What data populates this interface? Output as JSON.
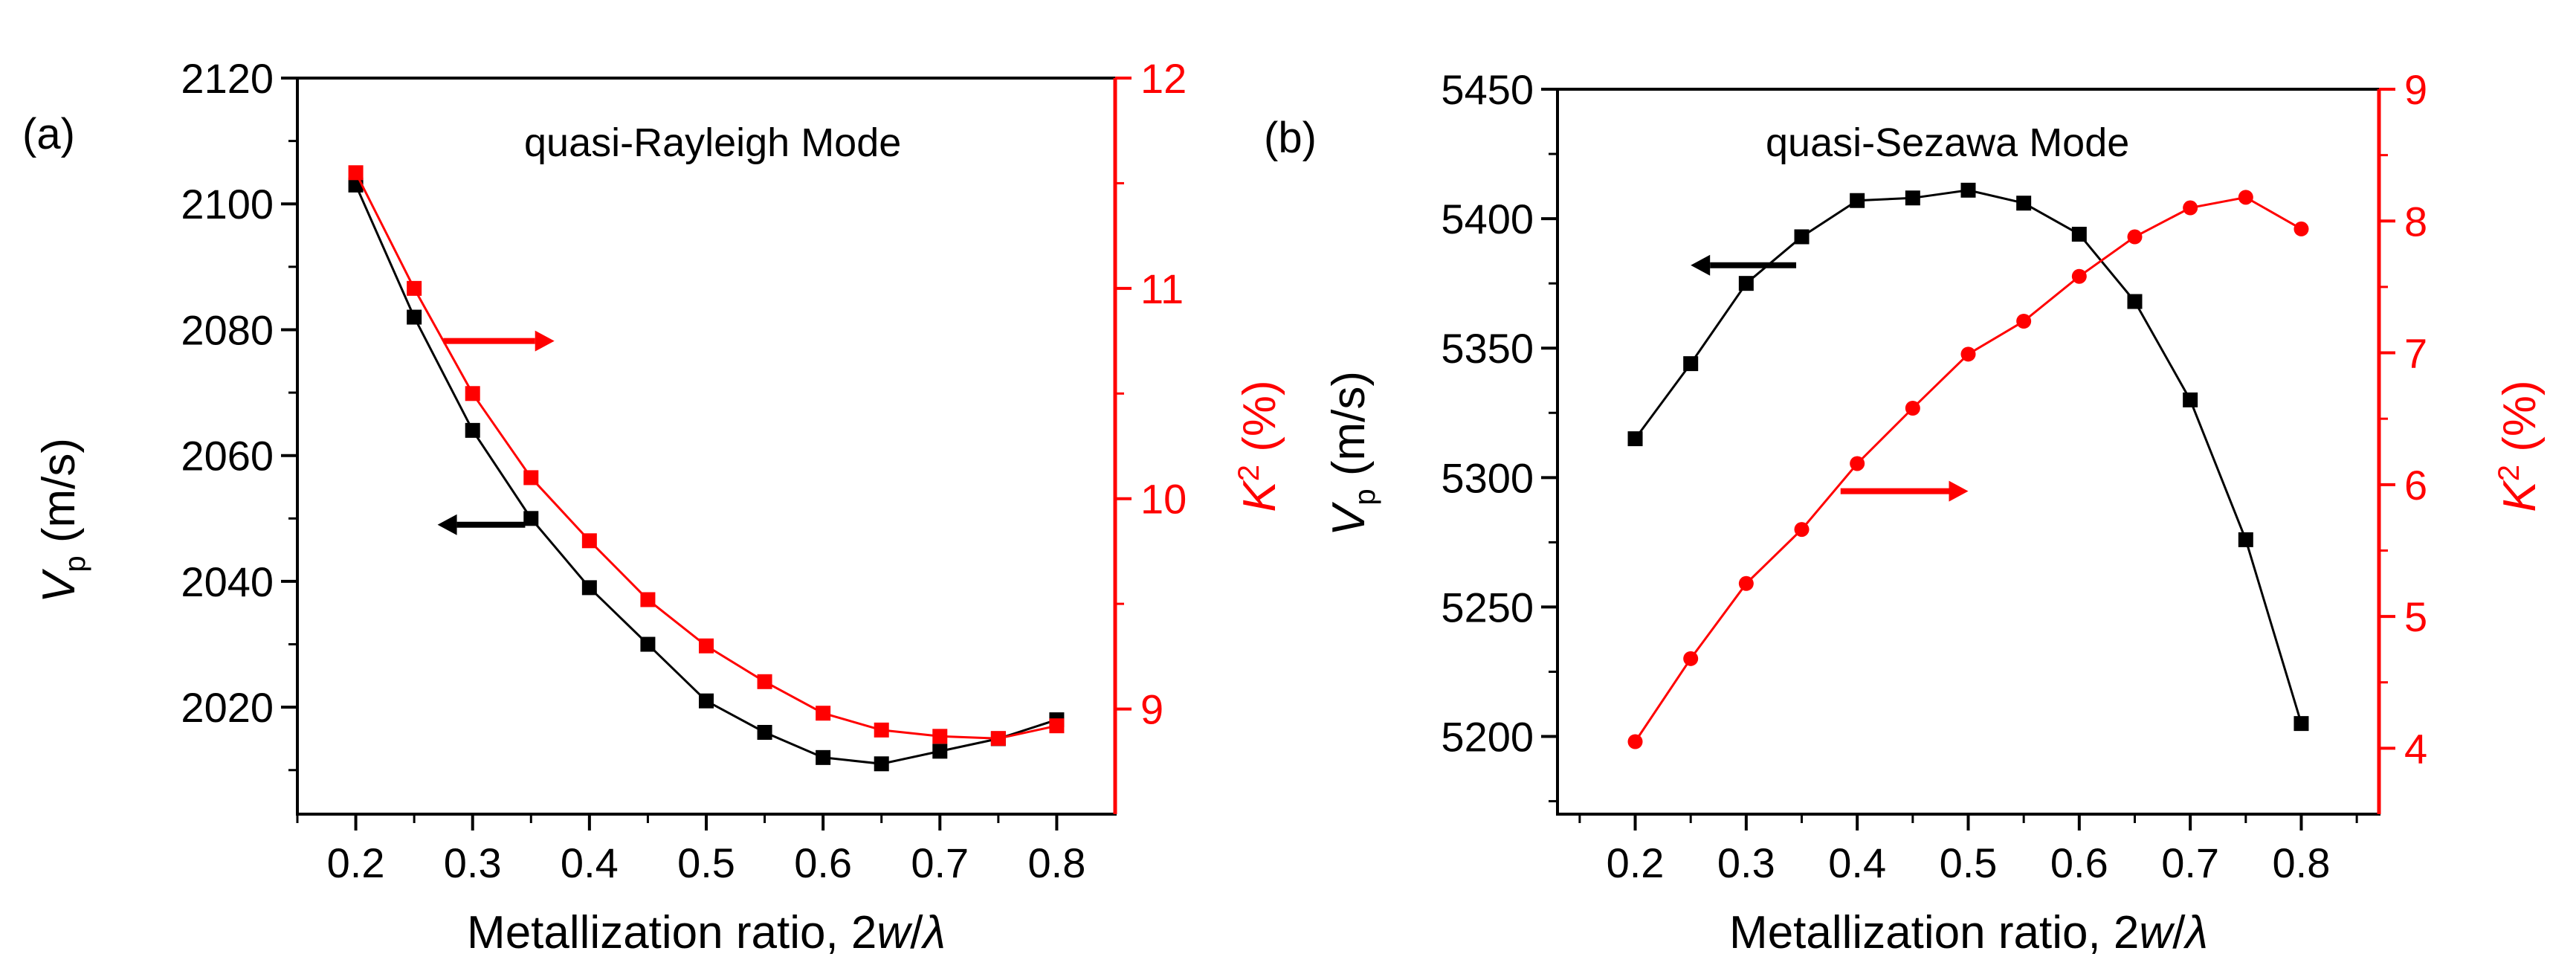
{
  "colors": {
    "left_axis": "#000000",
    "right_axis": "#ff0000",
    "black_series": "#000000",
    "red_series": "#ff0000"
  },
  "chart_data": [
    {
      "type": "line",
      "panel_label": "(a)",
      "annotation": "quasi-Rayleigh Mode",
      "xlabel": {
        "prefix": "Metallization ratio, 2",
        "var": "w",
        "slash": "/",
        "sym": "λ"
      },
      "ylabel_left": {
        "var": "V",
        "sub": "p",
        "unit": " (m/s)"
      },
      "ylabel_right": {
        "var": "K",
        "sup": "2",
        "unit": " (%)"
      },
      "xlim": [
        0.15,
        0.85
      ],
      "x_ticks": [
        "0.2",
        "0.3",
        "0.4",
        "0.5",
        "0.6",
        "0.7",
        "0.8"
      ],
      "ylim_left": [
        2003,
        2120
      ],
      "y_ticks_left": [
        "2020",
        "2040",
        "2060",
        "2080",
        "2100",
        "2120"
      ],
      "ylim_right": [
        8.5,
        12
      ],
      "y_ticks_right": [
        "9",
        "10",
        "11",
        "12"
      ],
      "x": [
        0.2,
        0.25,
        0.3,
        0.35,
        0.4,
        0.45,
        0.5,
        0.55,
        0.6,
        0.65,
        0.7,
        0.75,
        0.8
      ],
      "series": [
        {
          "name": "Vp",
          "axis": "left",
          "marker": "square",
          "color": "#000000",
          "values": [
            2103,
            2082,
            2064,
            2050,
            2039,
            2030,
            2021,
            2016,
            2012,
            2011,
            2013,
            2015,
            2018
          ]
        },
        {
          "name": "K2",
          "axis": "right",
          "marker": "square",
          "color": "#ff0000",
          "values": [
            11.55,
            11.0,
            10.5,
            10.1,
            9.8,
            9.52,
            9.3,
            9.13,
            8.98,
            8.9,
            8.87,
            8.86,
            8.92
          ]
        }
      ],
      "arrows": [
        {
          "direction": "left",
          "axis": "left",
          "x_from": 0.345,
          "x_to": 0.27,
          "y": 2049,
          "color": "#000000"
        },
        {
          "direction": "right",
          "axis": "right",
          "x_from": 0.275,
          "x_to": 0.37,
          "y": 10.75,
          "color": "#ff0000"
        }
      ]
    },
    {
      "type": "line",
      "panel_label": "(b)",
      "annotation": "quasi-Sezawa Mode",
      "xlabel": {
        "prefix": "Metallization ratio, 2",
        "var": "w",
        "slash": "/",
        "sym": "λ"
      },
      "ylabel_left": {
        "var": "V",
        "sub": "p",
        "unit": " (m/s)"
      },
      "ylabel_right": {
        "var": "K",
        "sup": "2",
        "unit": " (%)"
      },
      "xlim": [
        0.13,
        0.87
      ],
      "x_ticks": [
        "0.2",
        "0.3",
        "0.4",
        "0.5",
        "0.6",
        "0.7",
        "0.8"
      ],
      "ylim_left": [
        5170,
        5450
      ],
      "y_ticks_left": [
        "5200",
        "5250",
        "5300",
        "5350",
        "5400",
        "5450"
      ],
      "ylim_right": [
        3.5,
        9
      ],
      "y_ticks_right": [
        "4",
        "5",
        "6",
        "7",
        "8",
        "9"
      ],
      "x": [
        0.2,
        0.25,
        0.3,
        0.35,
        0.4,
        0.45,
        0.5,
        0.55,
        0.6,
        0.65,
        0.7,
        0.75,
        0.8
      ],
      "series": [
        {
          "name": "Vp",
          "axis": "left",
          "marker": "square",
          "color": "#000000",
          "values": [
            5315,
            5344,
            5375,
            5393,
            5407,
            5408,
            5411,
            5406,
            5394,
            5368,
            5330,
            5276,
            5205
          ]
        },
        {
          "name": "K2",
          "axis": "right",
          "marker": "circle",
          "color": "#ff0000",
          "values": [
            4.05,
            4.68,
            5.25,
            5.66,
            6.16,
            6.58,
            6.99,
            7.24,
            7.58,
            7.88,
            8.1,
            8.18,
            7.94
          ]
        }
      ],
      "arrows": [
        {
          "direction": "left",
          "axis": "left",
          "x_from": 0.345,
          "x_to": 0.25,
          "y": 5382,
          "color": "#000000"
        },
        {
          "direction": "right",
          "axis": "right",
          "x_from": 0.385,
          "x_to": 0.5,
          "y": 5.95,
          "color": "#ff0000"
        }
      ]
    }
  ]
}
